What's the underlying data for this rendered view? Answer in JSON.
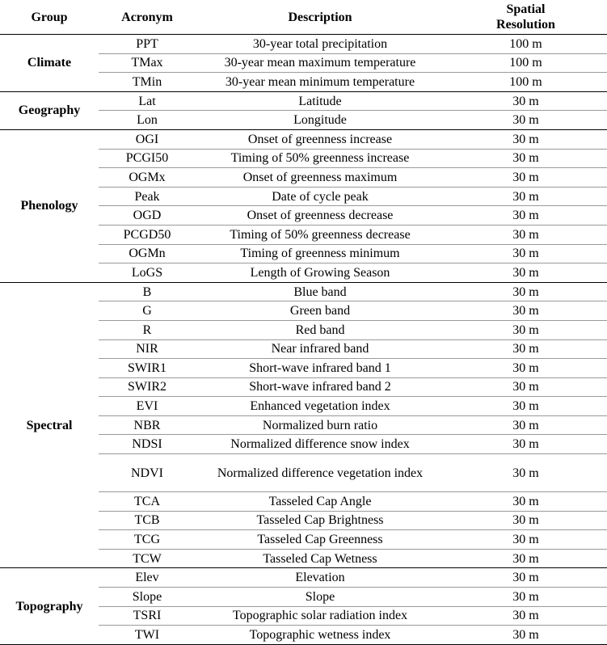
{
  "headers": {
    "group": "Group",
    "acronym": "Acronym",
    "description": "Description",
    "resolution_line1": "Spatial",
    "resolution_line2": "Resolution"
  },
  "groups": [
    {
      "name": "Climate",
      "rows": [
        {
          "acronym": "PPT",
          "description": "30-year total precipitation",
          "resolution": "100 m"
        },
        {
          "acronym": "TMax",
          "description": "30-year mean maximum temperature",
          "resolution": "100 m"
        },
        {
          "acronym": "TMin",
          "description": "30-year mean minimum temperature",
          "resolution": "100 m"
        }
      ]
    },
    {
      "name": "Geography",
      "rows": [
        {
          "acronym": "Lat",
          "description": "Latitude",
          "resolution": "30 m"
        },
        {
          "acronym": "Lon",
          "description": "Longitude",
          "resolution": "30 m"
        }
      ]
    },
    {
      "name": "Phenology",
      "rows": [
        {
          "acronym": "OGI",
          "description": "Onset of greenness increase",
          "resolution": "30 m"
        },
        {
          "acronym": "PCGI50",
          "description": "Timing of 50% greenness increase",
          "resolution": "30 m"
        },
        {
          "acronym": "OGMx",
          "description": "Onset of greenness maximum",
          "resolution": "30 m"
        },
        {
          "acronym": "Peak",
          "description": "Date of cycle peak",
          "resolution": "30 m"
        },
        {
          "acronym": "OGD",
          "description": "Onset of greenness decrease",
          "resolution": "30 m"
        },
        {
          "acronym": "PCGD50",
          "description": "Timing of 50% greenness decrease",
          "resolution": "30 m"
        },
        {
          "acronym": "OGMn",
          "description": "Timing of greenness minimum",
          "resolution": "30 m"
        },
        {
          "acronym": "LoGS",
          "description": "Length of Growing Season",
          "resolution": "30 m"
        }
      ]
    },
    {
      "name": "Spectral",
      "rows": [
        {
          "acronym": "B",
          "description": "Blue band",
          "resolution": "30 m"
        },
        {
          "acronym": "G",
          "description": "Green band",
          "resolution": "30 m"
        },
        {
          "acronym": "R",
          "description": "Red band",
          "resolution": "30 m"
        },
        {
          "acronym": "NIR",
          "description": "Near infrared band",
          "resolution": "30 m"
        },
        {
          "acronym": "SWIR1",
          "description": "Short-wave infrared band 1",
          "resolution": "30 m"
        },
        {
          "acronym": "SWIR2",
          "description": "Short-wave infrared band 2",
          "resolution": "30 m"
        },
        {
          "acronym": "EVI",
          "description": "Enhanced vegetation index",
          "resolution": "30 m"
        },
        {
          "acronym": "NBR",
          "description": "Normalized burn ratio",
          "resolution": "30 m"
        },
        {
          "acronym": "NDSI",
          "description": "Normalized difference snow index",
          "resolution": "30 m"
        },
        {
          "acronym": "NDVI",
          "description": "Normalized difference vegetation index",
          "resolution": "30 m",
          "tall": true
        },
        {
          "acronym": "TCA",
          "description": "Tasseled Cap Angle",
          "resolution": "30 m"
        },
        {
          "acronym": "TCB",
          "description": "Tasseled Cap Brightness",
          "resolution": "30 m"
        },
        {
          "acronym": "TCG",
          "description": "Tasseled Cap Greenness",
          "resolution": "30 m"
        },
        {
          "acronym": "TCW",
          "description": "Tasseled Cap Wetness",
          "resolution": "30 m"
        }
      ]
    },
    {
      "name": "Topography",
      "rows": [
        {
          "acronym": "Elev",
          "description": "Elevation",
          "resolution": "30 m"
        },
        {
          "acronym": "Slope",
          "description": "Slope",
          "resolution": "30 m"
        },
        {
          "acronym": "TSRI",
          "description": "Topographic solar radiation index",
          "resolution": "30 m"
        },
        {
          "acronym": "TWI",
          "description": "Topographic wetness index",
          "resolution": "30 m"
        }
      ]
    }
  ]
}
